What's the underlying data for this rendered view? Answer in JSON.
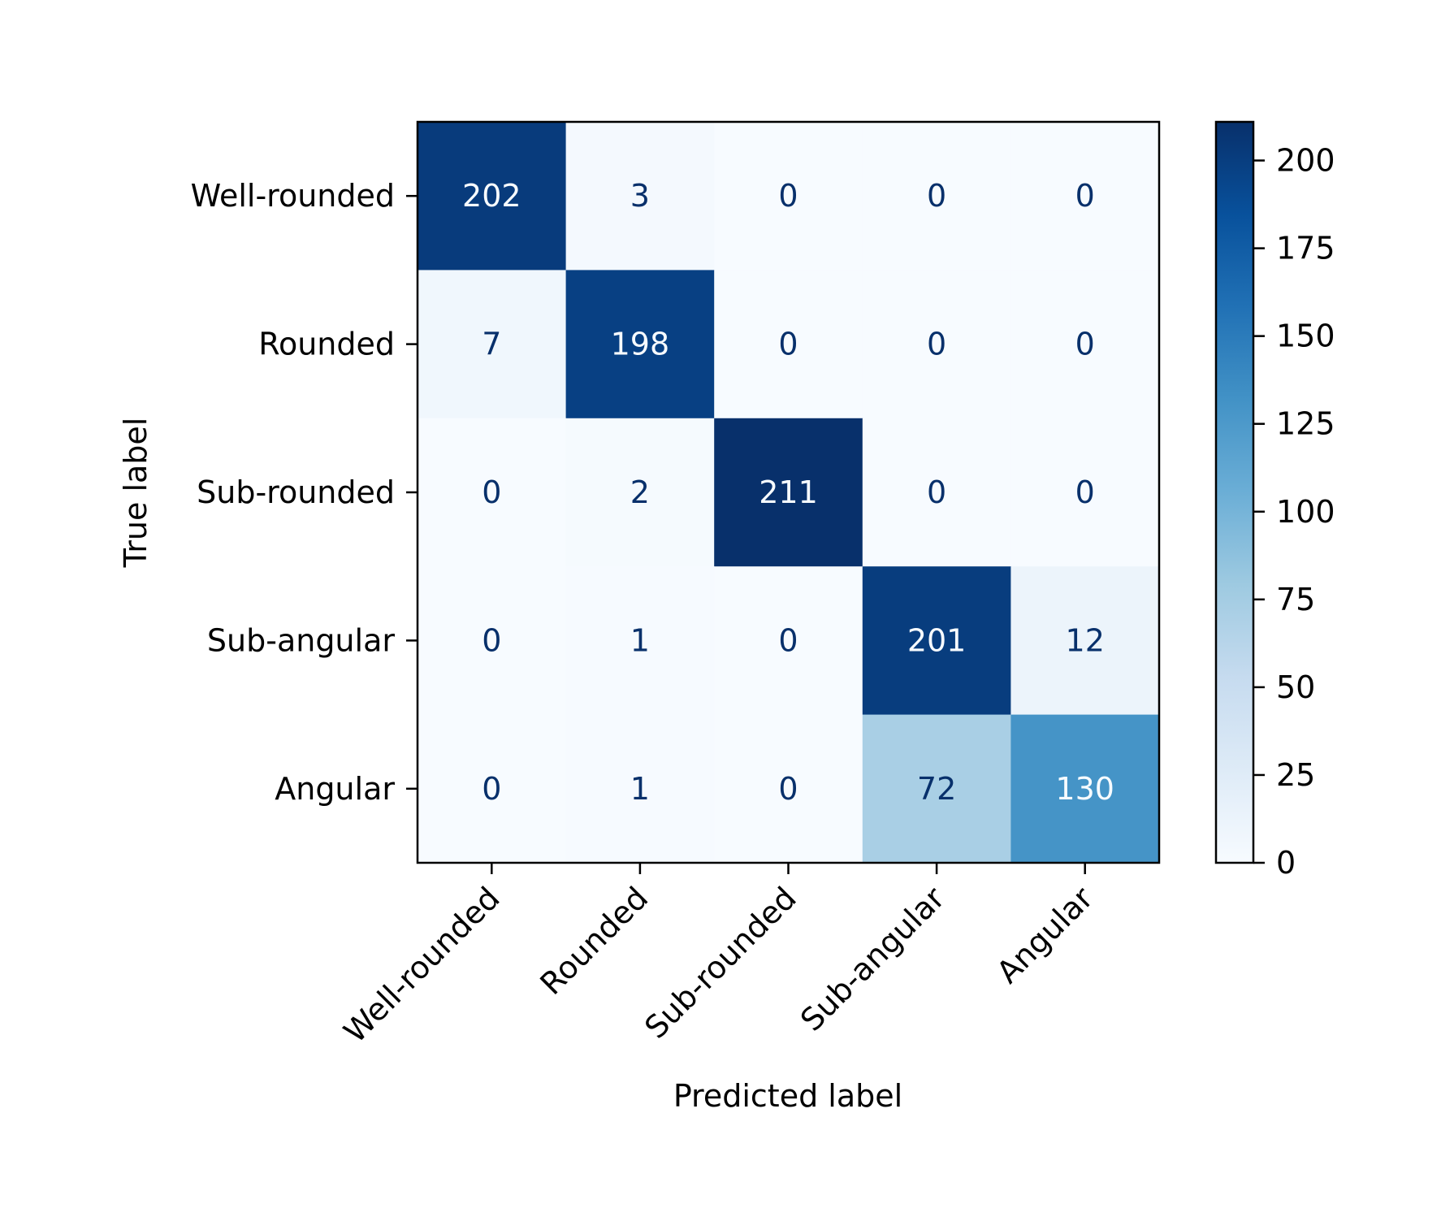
{
  "chart_data": {
    "type": "heatmap",
    "title": "",
    "xlabel": "Predicted label",
    "ylabel": "True label",
    "x_categories": [
      "Well-rounded",
      "Rounded",
      "Sub-rounded",
      "Sub-angular",
      "Angular"
    ],
    "y_categories": [
      "Well-rounded",
      "Rounded",
      "Sub-rounded",
      "Sub-angular",
      "Angular"
    ],
    "matrix": [
      [
        202,
        3,
        0,
        0,
        0
      ],
      [
        7,
        198,
        0,
        0,
        0
      ],
      [
        0,
        2,
        211,
        0,
        0
      ],
      [
        0,
        1,
        0,
        201,
        12
      ],
      [
        0,
        1,
        0,
        72,
        130
      ]
    ],
    "colormap": "Blues",
    "colorbar": {
      "range": [
        0,
        211
      ],
      "ticks": [
        0,
        25,
        50,
        75,
        100,
        125,
        150,
        175,
        200
      ]
    },
    "colors": {
      "low": "#f7fbff",
      "high": "#08306b",
      "text_dark": "#08306b",
      "text_light": "#f7fbff"
    },
    "grid": false,
    "legend": "colorbar-right"
  }
}
